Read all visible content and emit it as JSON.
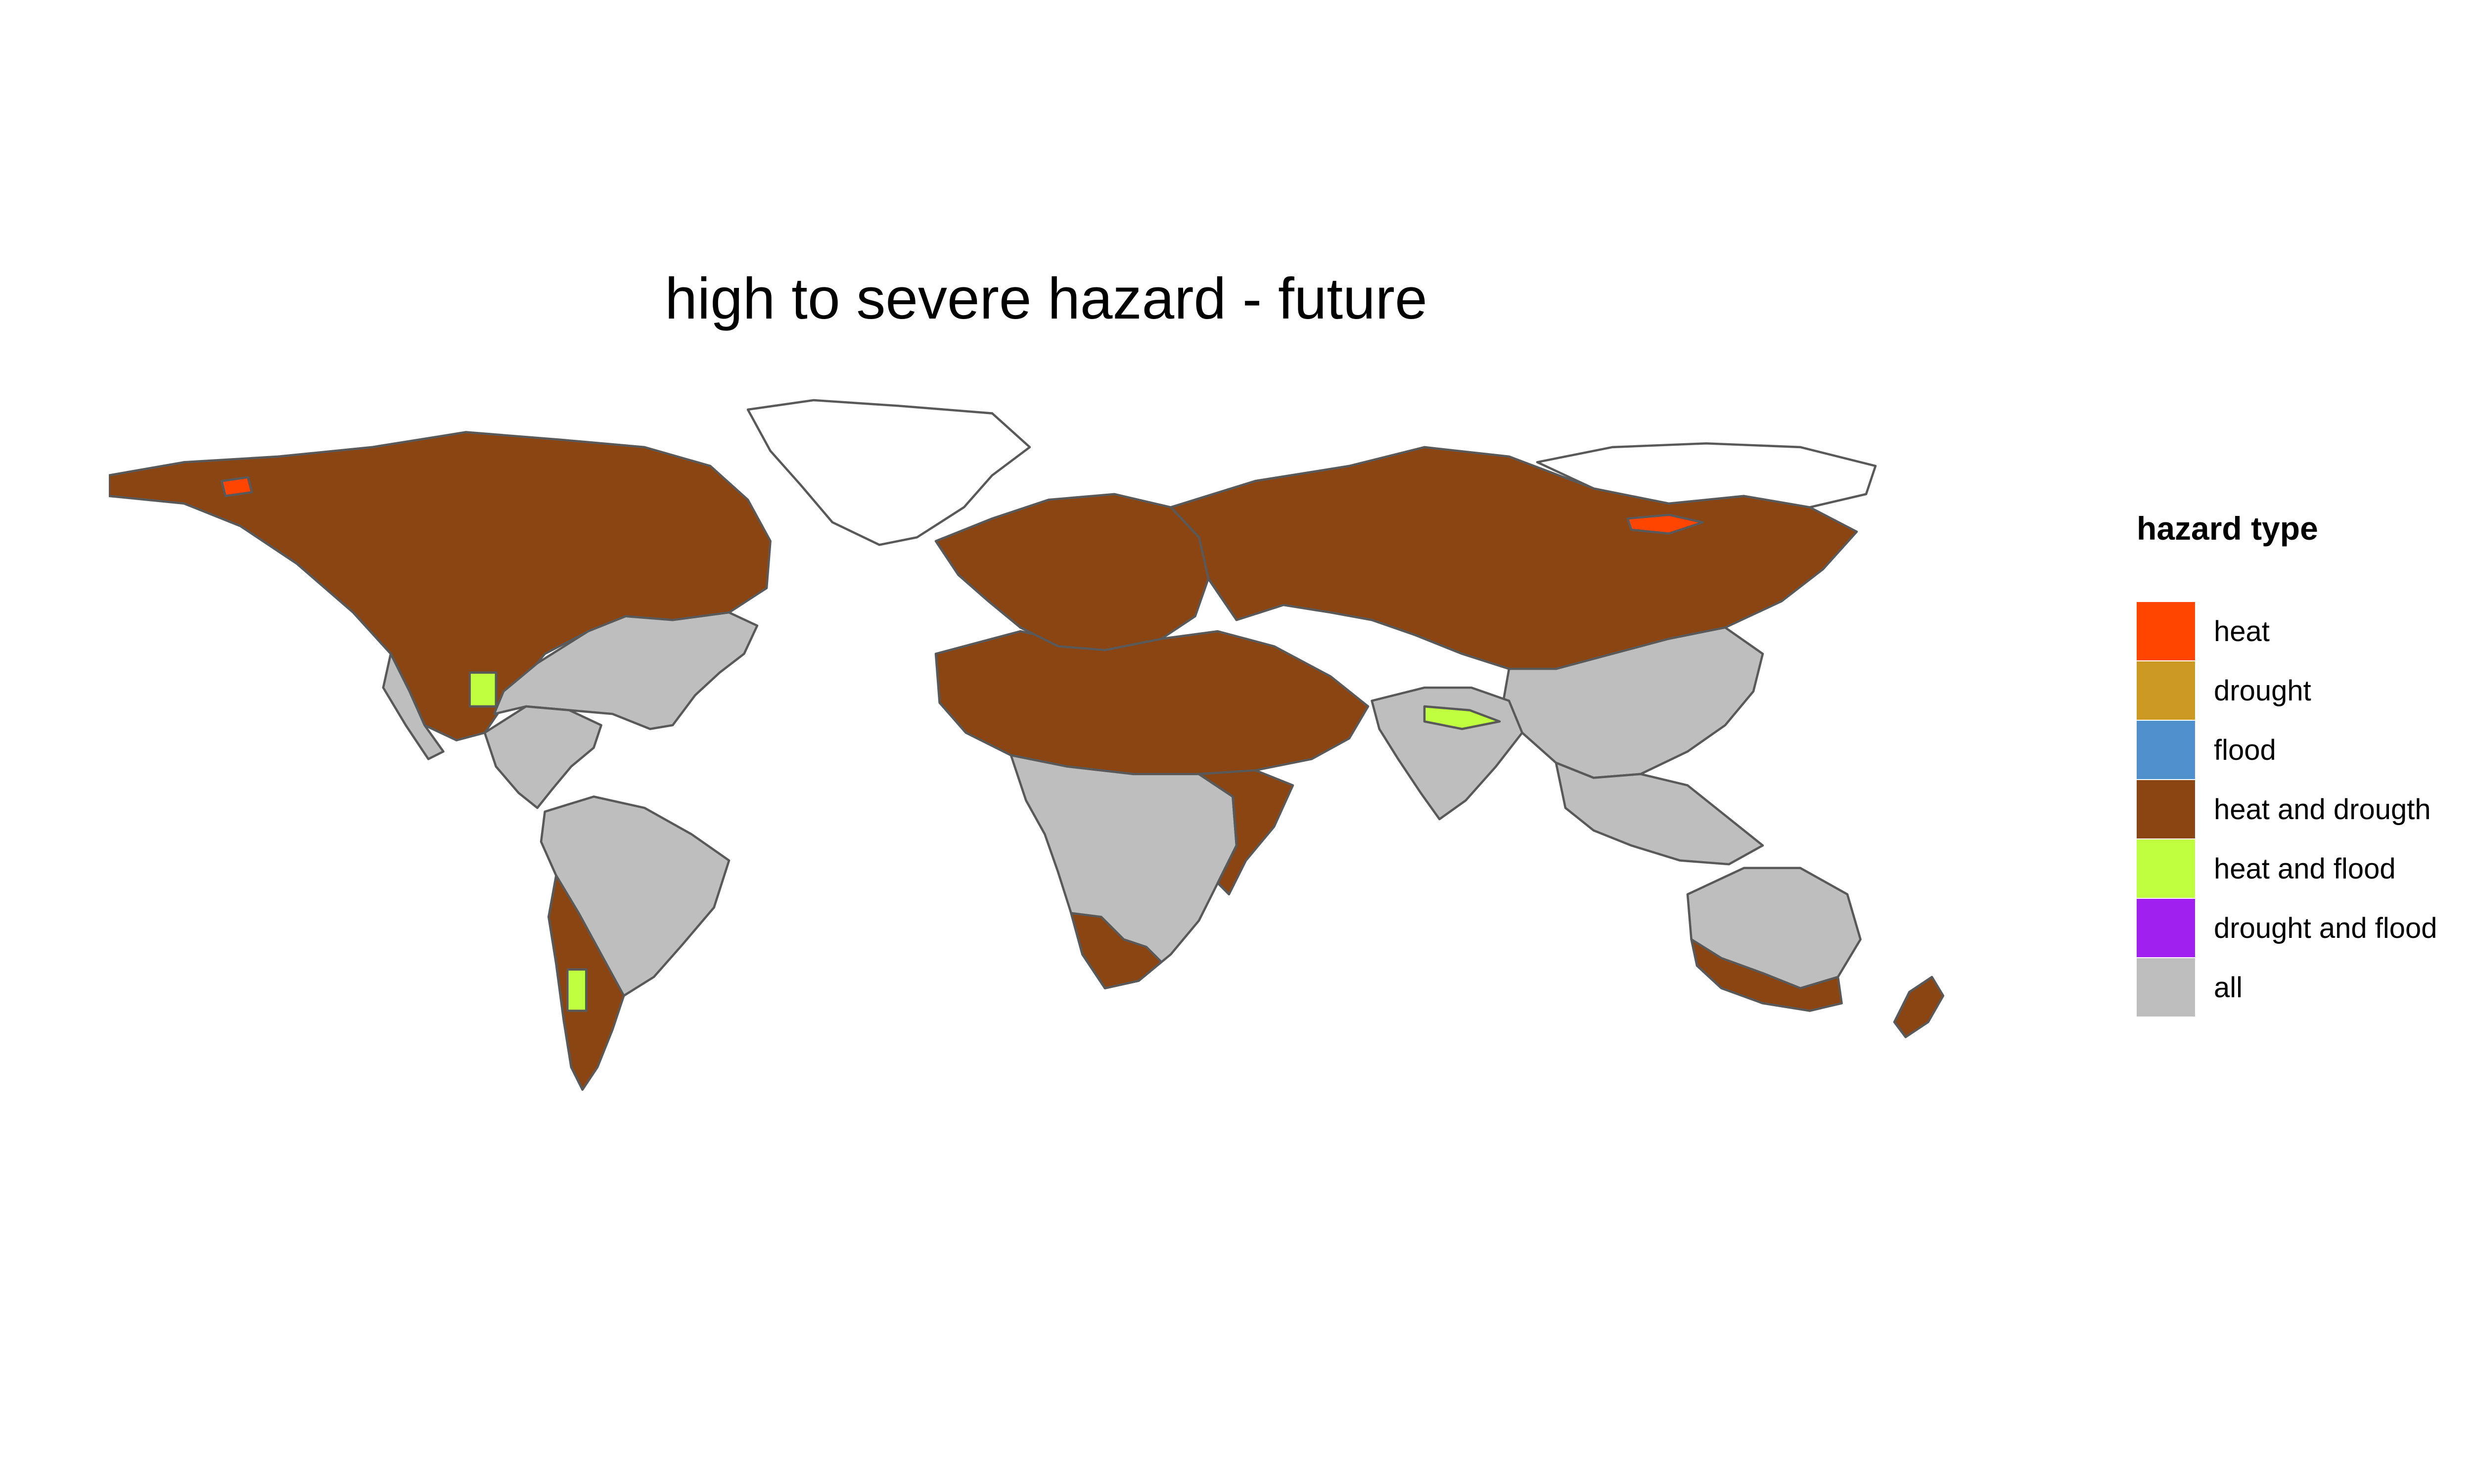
{
  "title": "high to severe hazard - future",
  "legend": {
    "title": "hazard type",
    "items": [
      {
        "key": "heat",
        "label": "heat",
        "color": "#FF4500"
      },
      {
        "key": "drought",
        "label": "drought",
        "color": "#CC9922"
      },
      {
        "key": "flood",
        "label": "flood",
        "color": "#4F90CD"
      },
      {
        "key": "heat_and_drought",
        "label": "heat and drougth",
        "color": "#8B4513"
      },
      {
        "key": "heat_and_flood",
        "label": "heat and flood",
        "color": "#BFFF3F"
      },
      {
        "key": "drought_and_flood",
        "label": "drought and flood",
        "color": "#A020F0"
      },
      {
        "key": "all",
        "label": "all",
        "color": "#BEBEBE"
      }
    ]
  },
  "colors": {
    "background": "#FFFFFF",
    "border": "#595959"
  },
  "regions": [
    {
      "name": "north-america-north",
      "hazard": "heat_and_drought"
    },
    {
      "name": "north-america-east",
      "hazard": "all"
    },
    {
      "name": "north-america-west-coast",
      "hazard": "all"
    },
    {
      "name": "central-america",
      "hazard": "all"
    },
    {
      "name": "south-america",
      "hazard": "all"
    },
    {
      "name": "south-america-south",
      "hazard": "heat_and_drought"
    },
    {
      "name": "north-africa-middle-east",
      "hazard": "heat_and_drought"
    },
    {
      "name": "sub-saharan-africa",
      "hazard": "all"
    },
    {
      "name": "east-africa",
      "hazard": "heat_and_drought"
    },
    {
      "name": "southern-africa",
      "hazard": "heat_and_drought"
    },
    {
      "name": "europe",
      "hazard": "heat_and_drought"
    },
    {
      "name": "russia-central-asia",
      "hazard": "heat_and_drought"
    },
    {
      "name": "east-asia",
      "hazard": "all"
    },
    {
      "name": "south-asia",
      "hazard": "all"
    },
    {
      "name": "southeast-asia",
      "hazard": "all"
    },
    {
      "name": "australia-interior",
      "hazard": "all"
    },
    {
      "name": "australia-south",
      "hazard": "heat_and_drought"
    },
    {
      "name": "new-zealand",
      "hazard": "heat_and_drought"
    },
    {
      "name": "greenland",
      "hazard": "none"
    },
    {
      "name": "siberia-north",
      "hazard": "none"
    },
    {
      "name": "us-southwest-flood-patch",
      "hazard": "heat_and_flood"
    },
    {
      "name": "india-north-flood-patch",
      "hazard": "heat_and_flood"
    },
    {
      "name": "argentina-flood-patch",
      "hazard": "heat_and_flood"
    },
    {
      "name": "siberia-heat-patch",
      "hazard": "heat"
    },
    {
      "name": "alaska-heat-patch",
      "hazard": "heat"
    }
  ]
}
